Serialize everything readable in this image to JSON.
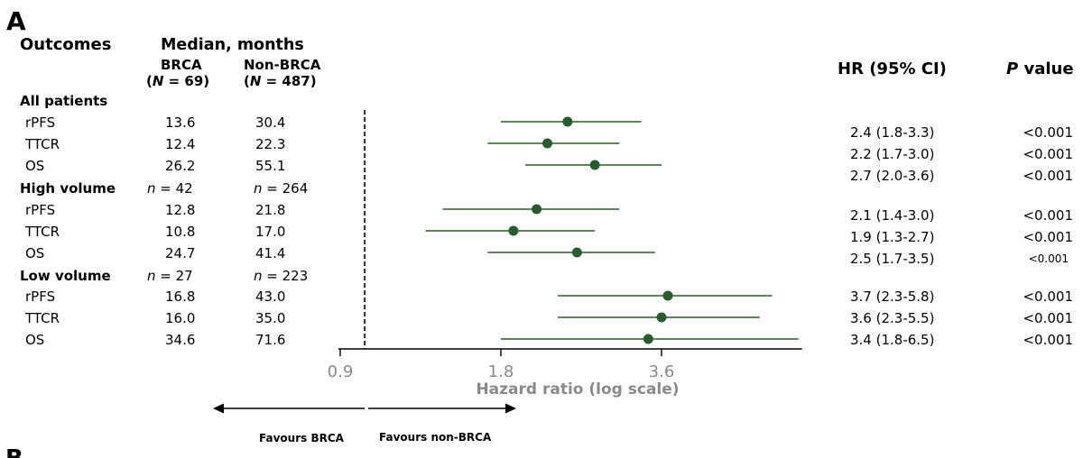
{
  "panel_label": "A",
  "next_panel_label": "B",
  "header": {
    "outcomes": "Outcomes",
    "median": "Median, months",
    "brca": "BRCA",
    "brca_n": {
      "open": "(",
      "var": "N",
      "rest": " = 69)"
    },
    "nonbrca": "Non-BRCA",
    "nonbrca_n": {
      "open": "(",
      "var": "N",
      "rest": " = 487)"
    },
    "hr": "HR (95% CI)",
    "p_var": "P",
    "p_rest": " value"
  },
  "favours": {
    "left": "Favours BRCA",
    "right": "Favours non-BRCA"
  },
  "colors": {
    "marker": "#2b5a2e",
    "axis_text": "#8a8a8a",
    "text": "#000000"
  },
  "chart_data": {
    "type": "scatter",
    "xlabel": "Hazard ratio (log scale)",
    "xscale": "log",
    "xlim": [
      0.9,
      6.6
    ],
    "xticks": [
      0.9,
      1.8,
      3.6
    ],
    "reference_line": 1,
    "grid": false,
    "groups": [
      {
        "label": "All patients",
        "rows": [
          {
            "outcome": "rPFS",
            "brca_median": "13.6",
            "nonbrca_median": "30.4",
            "hr": 2.4,
            "ci": [
              1.8,
              3.3
            ],
            "hr_label": "2.4 (1.8-3.3)",
            "p": "<0.001"
          },
          {
            "outcome": "TTCR",
            "brca_median": "12.4",
            "nonbrca_median": "22.3",
            "hr": 2.2,
            "ci": [
              1.7,
              3.0
            ],
            "hr_label": "2.2 (1.7-3.0)",
            "p": "<0.001"
          },
          {
            "outcome": "OS",
            "brca_median": "26.2",
            "nonbrca_median": "55.1",
            "hr": 2.7,
            "ci": [
              2.0,
              3.6
            ],
            "hr_label": "2.7 (2.0-3.6)",
            "p": "<0.001"
          }
        ]
      },
      {
        "label": "High volume",
        "brca_n": {
          "var": "n",
          "rest": " = 42"
        },
        "nonbrca_n": {
          "var": "n",
          "rest": " = 264"
        },
        "rows": [
          {
            "outcome": "rPFS",
            "brca_median": "12.8",
            "nonbrca_median": "21.8",
            "hr": 2.1,
            "ci": [
              1.4,
              3.0
            ],
            "hr_label": "2.1 (1.4-3.0)",
            "p": "<0.001"
          },
          {
            "outcome": "TTCR",
            "brca_median": "10.8",
            "nonbrca_median": "17.0",
            "hr": 1.9,
            "ci": [
              1.3,
              2.7
            ],
            "hr_label": "1.9 (1.3-2.7)",
            "p": "<0.001"
          },
          {
            "outcome": "OS",
            "brca_median": "24.7",
            "nonbrca_median": "41.4",
            "hr": 2.5,
            "ci": [
              1.7,
              3.5
            ],
            "hr_label": "2.5 (1.7-3.5)",
            "p": "<0.001"
          }
        ]
      },
      {
        "label": "Low volume",
        "brca_n": {
          "var": "n",
          "rest": " = 27"
        },
        "nonbrca_n": {
          "var": "n",
          "rest": " = 223"
        },
        "rows": [
          {
            "outcome": "rPFS",
            "brca_median": "16.8",
            "nonbrca_median": "43.0",
            "hr": 3.7,
            "ci": [
              2.3,
              5.8
            ],
            "hr_label": "3.7 (2.3-5.8)",
            "p": "<0.001"
          },
          {
            "outcome": "TTCR",
            "brca_median": "16.0",
            "nonbrca_median": "35.0",
            "hr": 3.6,
            "ci": [
              2.3,
              5.5
            ],
            "hr_label": "3.6 (2.3-5.5)",
            "p": "<0.001"
          },
          {
            "outcome": "OS",
            "brca_median": "34.6",
            "nonbrca_median": "71.6",
            "hr": 3.4,
            "ci": [
              1.8,
              6.5
            ],
            "hr_label": "3.4 (1.8-6.5)",
            "p": "<0.001"
          }
        ]
      }
    ]
  }
}
